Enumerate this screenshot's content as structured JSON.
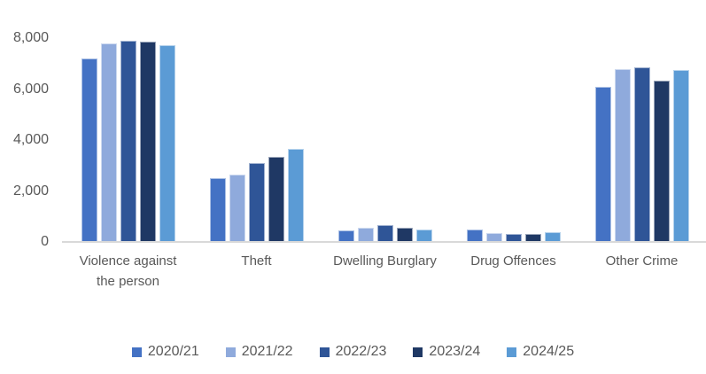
{
  "chart_data": {
    "type": "bar",
    "title": "",
    "xlabel": "",
    "ylabel": "",
    "categories": [
      "Violence against the person",
      "Theft",
      "Dwelling Burglary",
      "Drug Offences",
      "Other Crime"
    ],
    "series": [
      {
        "name": "2020/21",
        "color": "#4472C4",
        "values": [
          7200,
          2500,
          450,
          480,
          6100
        ]
      },
      {
        "name": "2021/22",
        "color": "#8FAADC",
        "values": [
          7790,
          2650,
          540,
          350,
          6790
        ]
      },
      {
        "name": "2022/23",
        "color": "#2F5597",
        "values": [
          7900,
          3100,
          660,
          300,
          6860
        ]
      },
      {
        "name": "2023/24",
        "color": "#1F3864",
        "values": [
          7860,
          3330,
          570,
          310,
          6340
        ]
      },
      {
        "name": "2024/25",
        "color": "#5B9BD5",
        "values": [
          7730,
          3660,
          480,
          370,
          6740
        ]
      }
    ],
    "ylim": [
      0,
      8000
    ],
    "y_ticks": [
      {
        "value": 0,
        "label": "0"
      },
      {
        "value": 2000,
        "label": "2,000"
      },
      {
        "value": 4000,
        "label": "4,000"
      },
      {
        "value": 6000,
        "label": "6,000"
      },
      {
        "value": 8000,
        "label": "8,000"
      }
    ],
    "grid": false,
    "legend_position": "bottom",
    "axis_line_color": "#D9D9D9",
    "text_color": "#595959"
  }
}
